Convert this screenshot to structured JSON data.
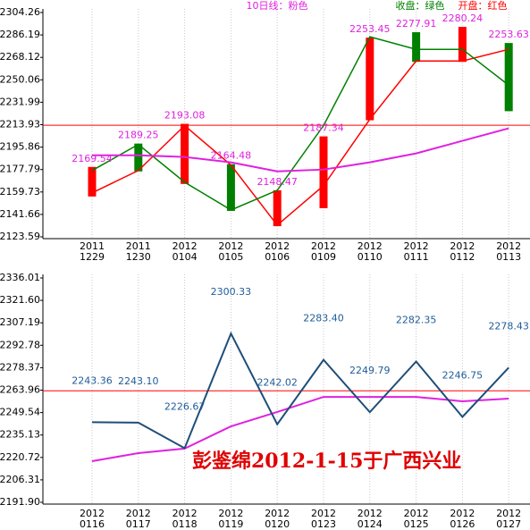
{
  "chart_data": [
    {
      "type": "candle-line",
      "categories": [
        [
          "2011",
          "1229"
        ],
        [
          "2011",
          "1230"
        ],
        [
          "2012",
          "0104"
        ],
        [
          "2012",
          "0105"
        ],
        [
          "2012",
          "0106"
        ],
        [
          "2012",
          "0109"
        ],
        [
          "2012",
          "0110"
        ],
        [
          "2012",
          "0111"
        ],
        [
          "2012",
          "0112"
        ],
        [
          "2012",
          "0113"
        ]
      ],
      "labels": [
        "2169.54",
        "2189.25",
        "2193.08",
        "2164.48",
        "2148.47",
        "2187.34",
        "2253.45",
        "2277.91",
        "2280.24",
        "2253.63"
      ],
      "label_color": "#e020e0",
      "candles": {
        "top": [
          2179.9,
          2198.7,
          2214.6,
          2182.1,
          2161.1,
          2204.5,
          2284.0,
          2288.4,
          2292.7,
          2279.7
        ],
        "bottom": [
          2156.1,
          2176.3,
          2166.2,
          2144.5,
          2132.2,
          2146.7,
          2217.5,
          2264.5,
          2264.5,
          2224.8
        ],
        "colors": [
          "#ff0000",
          "#008000",
          "#ff0000",
          "#008000",
          "#ff0000",
          "#ff0000",
          "#ff0000",
          "#008000",
          "#ff0000",
          "#008000"
        ]
      },
      "series": [
        {
          "name": "10日线：粉色",
          "color": "#e020e0",
          "values": [
            2189.3,
            2189.3,
            2187.9,
            2183.6,
            2176.3,
            2177.8,
            2183.6,
            2190.8,
            2200.9,
            2211.0
          ]
        },
        {
          "name": "收盘：绿色",
          "color": "#008000",
          "values": [
            2177.0,
            2198.0,
            2167.6,
            2145.2,
            2161.1,
            2213.2,
            2284.7,
            2274.6,
            2274.6,
            2245.7
          ]
        },
        {
          "name": "开盘：红色",
          "color": "#ff0000",
          "values": [
            2159.0,
            2177.0,
            2213.2,
            2181.4,
            2133.0,
            2164.8,
            2218.3,
            2265.2,
            2265.2,
            2274.6
          ]
        }
      ],
      "ylim": [
        2123.59,
        2304.26
      ],
      "yticks": [
        2304.26,
        2286.19,
        2268.12,
        2250.06,
        2231.99,
        2213.93,
        2195.86,
        2177.79,
        2159.73,
        2141.66,
        2123.59
      ],
      "ref_line": 2213.5,
      "ref_color": "#ff0000",
      "grid": true
    },
    {
      "type": "line",
      "categories": [
        [
          "2012",
          "0116"
        ],
        [
          "2012",
          "0117"
        ],
        [
          "2012",
          "0118"
        ],
        [
          "2012",
          "0119"
        ],
        [
          "2012",
          "0120"
        ],
        [
          "2012",
          "0123"
        ],
        [
          "2012",
          "0124"
        ],
        [
          "2012",
          "0125"
        ],
        [
          "2012",
          "0126"
        ],
        [
          "2012",
          "0127"
        ]
      ],
      "series": [
        {
          "color": "#1f4e79",
          "values": [
            2243.36,
            2243.1,
            2226.67,
            2300.33,
            2242.02,
            2283.4,
            2249.79,
            2282.35,
            2246.75,
            2278.43
          ],
          "value_labels": [
            "2243.36",
            "2243.10",
            "2226.67",
            "2300.33",
            "2242.02",
            "2283.40",
            "2249.79",
            "2282.35",
            "2246.75",
            "2278.43"
          ]
        },
        {
          "color": "#e020e0",
          "values": [
            2218.3,
            2223.5,
            2226.4,
            2240.7,
            2249.9,
            2259.6,
            2259.6,
            2259.6,
            2256.8,
            2258.5
          ]
        }
      ],
      "ylim": [
        2191.9,
        2336.01
      ],
      "yticks": [
        2336.01,
        {
          "value": 2321.6,
          "label": "2321.60"
        },
        2307.19,
        2292.78,
        2278.37,
        2263.96,
        2249.54,
        2235.13,
        2220.72,
        2206.31,
        {
          "value": 2191.9,
          "label": "2191.90"
        }
      ],
      "ref_line": 2263.5,
      "ref_color": "#ff0000",
      "grid": true,
      "annotation": "彭鉴绵2012-1-15于广西兴业",
      "annotation_color": "#e00000"
    }
  ]
}
